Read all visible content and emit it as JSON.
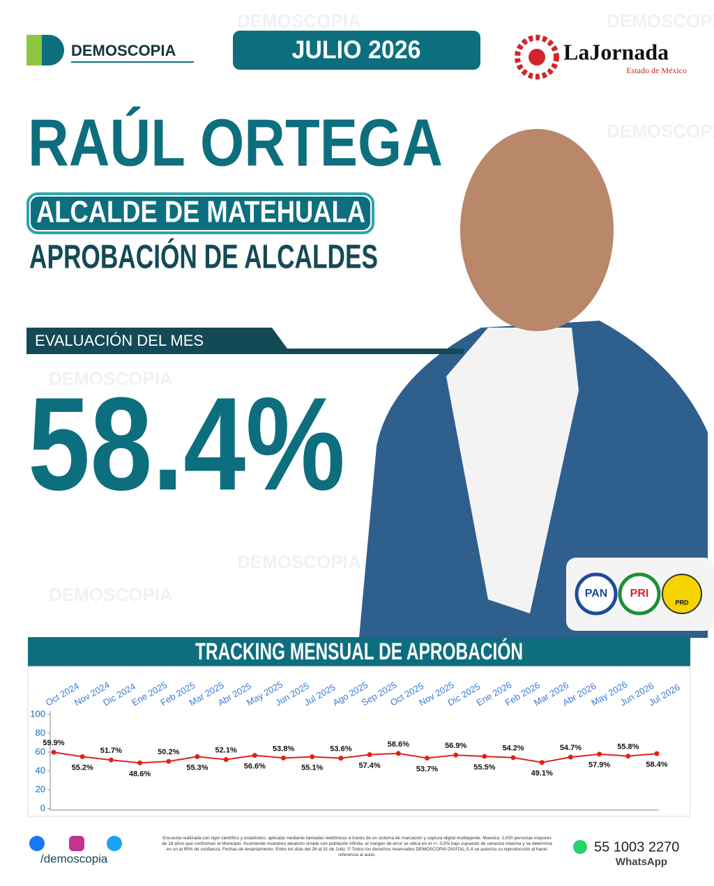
{
  "header": {
    "brand": "DEMOSCOPIA",
    "date": "JULIO 2026",
    "partner": "LaJornada",
    "partner_sub": "Estado de México"
  },
  "headline": {
    "name": "RAÚL ORTEGA",
    "role": "ALCALDE DE MATEHUALA",
    "topic": "APROBACIÓN DE ALCALDES"
  },
  "evaluation": {
    "label": "EVALUACIÓN DEL MES",
    "value": "58.4%"
  },
  "parties": [
    "PAN",
    "PRI",
    "PRD"
  ],
  "chart_data": {
    "type": "line",
    "title": "TRACKING MENSUAL DE APROBACIÓN",
    "categories": [
      "Oct 2024",
      "Nov 2024",
      "Dic 2024",
      "Ene 2025",
      "Feb 2025",
      "Mar 2025",
      "Abr 2025",
      "May 2025",
      "Jun 2025",
      "Jul 2025",
      "Ago 2025",
      "Sep 2025",
      "Oct 2025",
      "Nov 2025",
      "Dic 2025",
      "Ene 2026",
      "Feb 2026",
      "Mar 2026",
      "Abr 2026",
      "May 2026",
      "Jun 2026",
      "Jul 2026"
    ],
    "values": [
      59.9,
      55.2,
      51.7,
      48.6,
      50.2,
      55.3,
      52.1,
      56.6,
      53.8,
      55.1,
      53.6,
      57.4,
      58.6,
      53.7,
      56.9,
      55.5,
      54.2,
      49.1,
      54.7,
      57.9,
      55.8,
      58.4
    ],
    "value_labels": [
      "59.9%",
      "55.2%",
      "51.7%",
      "48.6%",
      "50.2%",
      "55.3%",
      "52.1%",
      "56.6%",
      "53.8%",
      "55.1%",
      "53.6%",
      "57.4%",
      "58.6%",
      "53.7%",
      "56.9%",
      "55.5%",
      "54.2%",
      "49.1%",
      "54.7%",
      "57.9%",
      "55.8%",
      "58.4%"
    ],
    "color": "#e0201b",
    "ylim": [
      0,
      100
    ],
    "yticks": [
      0,
      20,
      40,
      60,
      80,
      100
    ],
    "grid": false
  },
  "footer": {
    "handle": "/demoscopia",
    "note": "Encuesta realizada con rigor científico y estadístico, aplicada mediante llamadas telefónicas a través de un sistema de marcación y captura digital multiagente. Muestra: 1,000 personas mayores de 18 años que conforman el Municipio. Asumiendo muestreo aleatorio simple con población infinita, el margen de error se ubica en el +/- 3.5% bajo supuesto de varianza máxima y se determina en un al 95% de confianza. Fechas de levantamiento: Entre los días del 28 al 31 de Julio. © Todos los derechos reservados DEMOSCOPIA DIGITAL,S.A se autoriza su reproducción al hacer referencia al autor.",
    "phone": "55 1003 2270",
    "channel": "WhatsApp"
  }
}
